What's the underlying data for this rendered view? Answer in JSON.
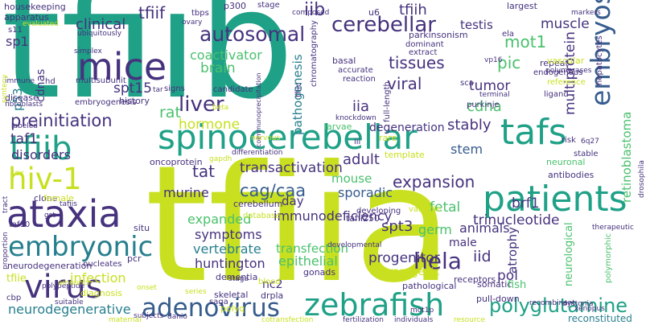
{
  "palette": {
    "purple": "#440154",
    "indigo": "#46327e",
    "blue": "#365c8d",
    "steel": "#277f8e",
    "teal": "#1fa187",
    "green": "#4ac16d",
    "lime": "#a0da39",
    "yellow": "#c8e020"
  },
  "words": [
    {
      "text": "tfiib",
      "color": "#1fa187"
    },
    {
      "text": "tfiia",
      "color": "#c8e020"
    },
    {
      "text": "spinocerebellar",
      "color": "#1fa187"
    },
    {
      "text": "patients",
      "color": "#1fa187"
    },
    {
      "text": "ataxia",
      "color": "#46327e"
    },
    {
      "text": "hiv-1",
      "color": "#c8e020"
    },
    {
      "text": "tfiib",
      "color": "#1fa187"
    },
    {
      "text": "mice",
      "color": "#46327e"
    },
    {
      "text": "tafs",
      "color": "#1fa187"
    },
    {
      "text": "virus",
      "color": "#46327e"
    },
    {
      "text": "zebrafish",
      "color": "#1fa187"
    },
    {
      "text": "adenovirus",
      "color": "#365c8d"
    },
    {
      "text": "embryonic",
      "color": "#277f8e"
    },
    {
      "text": "embryos",
      "color": "#365c8d"
    },
    {
      "text": "cerebellar",
      "color": "#46327e"
    },
    {
      "text": "polyglutamine",
      "color": "#1fa187"
    },
    {
      "text": "autosomal",
      "color": "#46327e"
    },
    {
      "text": "liver",
      "color": "#46327e"
    },
    {
      "text": "hela",
      "color": "#46327e"
    },
    {
      "text": "tfiif",
      "color": "#46327e"
    },
    {
      "text": "iib",
      "color": "#46327e"
    },
    {
      "text": "mot1",
      "color": "#4ac16d"
    },
    {
      "text": "preinitiation",
      "color": "#46327e"
    },
    {
      "text": "expansion",
      "color": "#46327e"
    },
    {
      "text": "cag/caa",
      "color": "#365c8d"
    },
    {
      "text": "viral",
      "color": "#46327e"
    },
    {
      "text": "tat",
      "color": "#46327e"
    },
    {
      "text": "transactivation",
      "color": "#46327e"
    },
    {
      "text": "immunodeficiency",
      "color": "#46327e"
    },
    {
      "text": "trinucleotide",
      "color": "#46327e"
    },
    {
      "text": "tfiih",
      "color": "#46327e"
    },
    {
      "text": "clinical",
      "color": "#46327e"
    },
    {
      "text": "muscle",
      "color": "#46327e"
    },
    {
      "text": "testis",
      "color": "#46327e"
    },
    {
      "text": "pic",
      "color": "#4ac16d"
    },
    {
      "text": "sp1",
      "color": "#46327e"
    },
    {
      "text": "p53",
      "color": "#277f8e"
    },
    {
      "text": "cdnas",
      "color": "#46327e"
    },
    {
      "text": "coactivator",
      "color": "#4ac16d"
    },
    {
      "text": "brain",
      "color": "#4ac16d"
    },
    {
      "text": "spt15",
      "color": "#46327e"
    },
    {
      "text": "hormone",
      "color": "#c8e020"
    },
    {
      "text": "rat",
      "color": "#4ac16d"
    },
    {
      "text": "taf1",
      "color": "#46327e"
    },
    {
      "text": "disorders",
      "color": "#46327e"
    },
    {
      "text": "tissues",
      "color": "#46327e"
    },
    {
      "text": "tumor",
      "color": "#46327e"
    },
    {
      "text": "cdna",
      "color": "#4ac16d"
    },
    {
      "text": "stably",
      "color": "#46327e"
    },
    {
      "text": "stem",
      "color": "#365c8d"
    },
    {
      "text": "pathogenesis",
      "color": "#277f8e"
    },
    {
      "text": "multiprotein",
      "color": "#46327e"
    },
    {
      "text": "retinoblastoma",
      "color": "#4ac16d"
    },
    {
      "text": "iia",
      "color": "#46327e"
    },
    {
      "text": "degeneration",
      "color": "#46327e"
    },
    {
      "text": "adult",
      "color": "#46327e"
    },
    {
      "text": "mouse",
      "color": "#4ac16d"
    },
    {
      "text": "sporadic",
      "color": "#365c8d"
    },
    {
      "text": "murine",
      "color": "#46327e"
    },
    {
      "text": "expanded",
      "color": "#4ac16d"
    },
    {
      "text": "fetal",
      "color": "#4ac16d"
    },
    {
      "text": "day",
      "color": "#46327e"
    },
    {
      "text": "brf1",
      "color": "#46327e"
    },
    {
      "text": "symptoms",
      "color": "#46327e"
    },
    {
      "text": "vertebrate",
      "color": "#277f8e"
    },
    {
      "text": "transfection",
      "color": "#4ac16d"
    },
    {
      "text": "epithelial",
      "color": "#4ac16d"
    },
    {
      "text": "spt3",
      "color": "#46327e"
    },
    {
      "text": "germ",
      "color": "#4ac16d"
    },
    {
      "text": "animals",
      "color": "#46327e"
    },
    {
      "text": "male",
      "color": "#46327e"
    },
    {
      "text": "huntington",
      "color": "#46327e"
    },
    {
      "text": "progenitor",
      "color": "#46327e"
    },
    {
      "text": "iid",
      "color": "#46327e"
    },
    {
      "text": "atrophy",
      "color": "#46327e"
    },
    {
      "text": "pol",
      "color": "#46327e"
    },
    {
      "text": "infection",
      "color": "#c8e020"
    },
    {
      "text": "neurodegenerative",
      "color": "#277f8e"
    },
    {
      "text": "nc2",
      "color": "#46327e"
    },
    {
      "text": "tfiie",
      "color": "#c8e020"
    },
    {
      "text": "skeletal",
      "color": "#46327e"
    },
    {
      "text": "drpla",
      "color": "#46327e"
    },
    {
      "text": "neurological",
      "color": "#4ac16d"
    },
    {
      "text": "reconstituted",
      "color": "#277f8e"
    },
    {
      "text": "oncoprotein",
      "color": "#46327e"
    },
    {
      "text": "embryogenesis",
      "color": "#46327e"
    },
    {
      "text": "multisubunit",
      "color": "#46327e"
    },
    {
      "text": "housekeeping",
      "color": "#46327e"
    },
    {
      "text": "apparatus",
      "color": "#46327e"
    },
    {
      "text": "dementia",
      "color": "#46327e"
    },
    {
      "text": "cerebellum",
      "color": "#46327e"
    },
    {
      "text": "parkinsonism",
      "color": "#46327e"
    },
    {
      "text": "largest",
      "color": "#46327e"
    },
    {
      "text": "history",
      "color": "#46327e"
    },
    {
      "text": "neuronal",
      "color": "#4ac16d"
    },
    {
      "text": "antibodies",
      "color": "#46327e"
    },
    {
      "text": "receptors",
      "color": "#46327e"
    },
    {
      "text": "polyq",
      "color": "#c8e020"
    },
    {
      "text": "saga",
      "color": "#46327e"
    },
    {
      "text": "pathological",
      "color": "#46327e"
    },
    {
      "text": "transgenic",
      "color": "#c8e020"
    },
    {
      "text": "gonads",
      "color": "#46327e"
    },
    {
      "text": "somatic",
      "color": "#46327e"
    },
    {
      "text": "pull-down",
      "color": "#46327e"
    },
    {
      "text": "fish",
      "color": "#4ac16d"
    },
    {
      "text": "taf10",
      "color": "#46327e"
    },
    {
      "text": "neurodegeneration",
      "color": "#46327e"
    },
    {
      "text": "nucleates",
      "color": "#46327e"
    },
    {
      "text": "clone",
      "color": "#46327e"
    },
    {
      "text": "diagnosis",
      "color": "#c8e020"
    },
    {
      "text": "female",
      "color": "#c8e020"
    },
    {
      "text": "tafiis",
      "color": "#46327e"
    },
    {
      "text": "situ",
      "color": "#46327e"
    },
    {
      "text": "pcr",
      "color": "#46327e"
    },
    {
      "text": "p300",
      "color": "#46327e"
    },
    {
      "text": "tbps",
      "color": "#46327e"
    },
    {
      "text": "stage",
      "color": "#46327e"
    },
    {
      "text": "larvae",
      "color": "#4ac16d"
    },
    {
      "text": "knockdown",
      "color": "#46327e"
    },
    {
      "text": "rare",
      "color": "#c8e020"
    },
    {
      "text": "template",
      "color": "#c8e020"
    },
    {
      "text": "variable",
      "color": "#c8e020"
    },
    {
      "text": "database",
      "color": "#c8e020"
    },
    {
      "text": "blood",
      "color": "#c8e020"
    },
    {
      "text": "tafii250",
      "color": "#46327e"
    },
    {
      "text": "developing",
      "color": "#46327e"
    },
    {
      "text": "stable",
      "color": "#46327e"
    },
    {
      "text": "repeat",
      "color": "#46327e"
    },
    {
      "text": "endogenous",
      "color": "#46327e"
    },
    {
      "text": "full-length",
      "color": "#46327e"
    },
    {
      "text": "purkinje",
      "color": "#46327e"
    },
    {
      "text": "dominant",
      "color": "#46327e"
    },
    {
      "text": "extract",
      "color": "#46327e"
    },
    {
      "text": "candidate",
      "color": "#46327e"
    },
    {
      "text": "chromatography",
      "color": "#46327e"
    },
    {
      "text": "coimmunoprecipitation",
      "color": "#46327e"
    },
    {
      "text": "basal",
      "color": "#46327e"
    },
    {
      "text": "accurate",
      "color": "#46327e"
    },
    {
      "text": "reaction",
      "color": "#46327e"
    },
    {
      "text": "sca",
      "color": "#46327e"
    },
    {
      "text": "tfiic",
      "color": "#46327e"
    },
    {
      "text": "vascular",
      "color": "#c8e020"
    },
    {
      "text": "polymerases",
      "color": "#46327e"
    },
    {
      "text": "reference",
      "color": "#c8e020"
    },
    {
      "text": "ligand",
      "color": "#46327e"
    },
    {
      "text": "hepatocytes",
      "color": "#46327e"
    },
    {
      "text": "markers",
      "color": "#46327e"
    },
    {
      "text": "ela",
      "color": "#46327e"
    },
    {
      "text": "u6",
      "color": "#46327e"
    },
    {
      "text": "composed",
      "color": "#46327e"
    },
    {
      "text": "disease",
      "color": "#46327e"
    },
    {
      "text": "fibroblasts",
      "color": "#46327e"
    },
    {
      "text": "immune",
      "color": "#46327e"
    },
    {
      "text": "hd",
      "color": "#46327e"
    },
    {
      "text": "labeled",
      "color": "#46327e"
    },
    {
      "text": "sex",
      "color": "#c8e020"
    },
    {
      "text": "s11",
      "color": "#46327e"
    },
    {
      "text": "evaluated",
      "color": "#c8e020"
    },
    {
      "text": "simplex",
      "color": "#46327e"
    },
    {
      "text": "ubiquitously",
      "color": "#46327e"
    },
    {
      "text": "ovary",
      "color": "#46327e"
    },
    {
      "text": "signs",
      "color": "#46327e"
    },
    {
      "text": "tar",
      "color": "#46327e"
    },
    {
      "text": "gapdh",
      "color": "#c8e020"
    },
    {
      "text": "nervous",
      "color": "#c8e020"
    },
    {
      "text": "differentiation",
      "color": "#46327e"
    },
    {
      "text": "iii",
      "color": "#46327e"
    },
    {
      "text": "vp16",
      "color": "#46327e"
    },
    {
      "text": "terminal",
      "color": "#46327e"
    },
    {
      "text": "proportion",
      "color": "#46327e"
    },
    {
      "text": "gst",
      "color": "#46327e"
    },
    {
      "text": "tract",
      "color": "#46327e"
    },
    {
      "text": "polypeptide",
      "color": "#46327e"
    },
    {
      "text": "amounts",
      "color": "#c8e020"
    },
    {
      "text": "suitable",
      "color": "#46327e"
    },
    {
      "text": "cbp",
      "color": "#46327e"
    },
    {
      "text": "onset",
      "color": "#c8e020"
    },
    {
      "text": "series",
      "color": "#c8e020"
    },
    {
      "text": "developmental",
      "color": "#46327e"
    },
    {
      "text": "subjects",
      "color": "#46327e"
    },
    {
      "text": "danio",
      "color": "#46327e"
    },
    {
      "text": "maternal",
      "color": "#c8e020"
    },
    {
      "text": "cotransfection",
      "color": "#c8e020"
    },
    {
      "text": "fertilization",
      "color": "#46327e"
    },
    {
      "text": "individuals",
      "color": "#46327e"
    },
    {
      "text": "resource",
      "color": "#c8e020"
    },
    {
      "text": "mot1p",
      "color": "#46327e"
    },
    {
      "text": "dystonia",
      "color": "#46327e"
    },
    {
      "text": "xenopus",
      "color": "#46327e"
    },
    {
      "text": "recombinant",
      "color": "#46327e"
    },
    {
      "text": "polymorphic",
      "color": "#4ac16d"
    },
    {
      "text": "therapeutic",
      "color": "#46327e"
    },
    {
      "text": "drosophila",
      "color": "#46327e"
    },
    {
      "text": "risk",
      "color": "#46327e"
    },
    {
      "text": "6q27",
      "color": "#46327e"
    },
    {
      "text": "synteny",
      "color": "#c8e020"
    },
    {
      "text": "staga",
      "color": "#46327e"
    },
    {
      "text": "beta",
      "color": "#c8e020"
    }
  ]
}
